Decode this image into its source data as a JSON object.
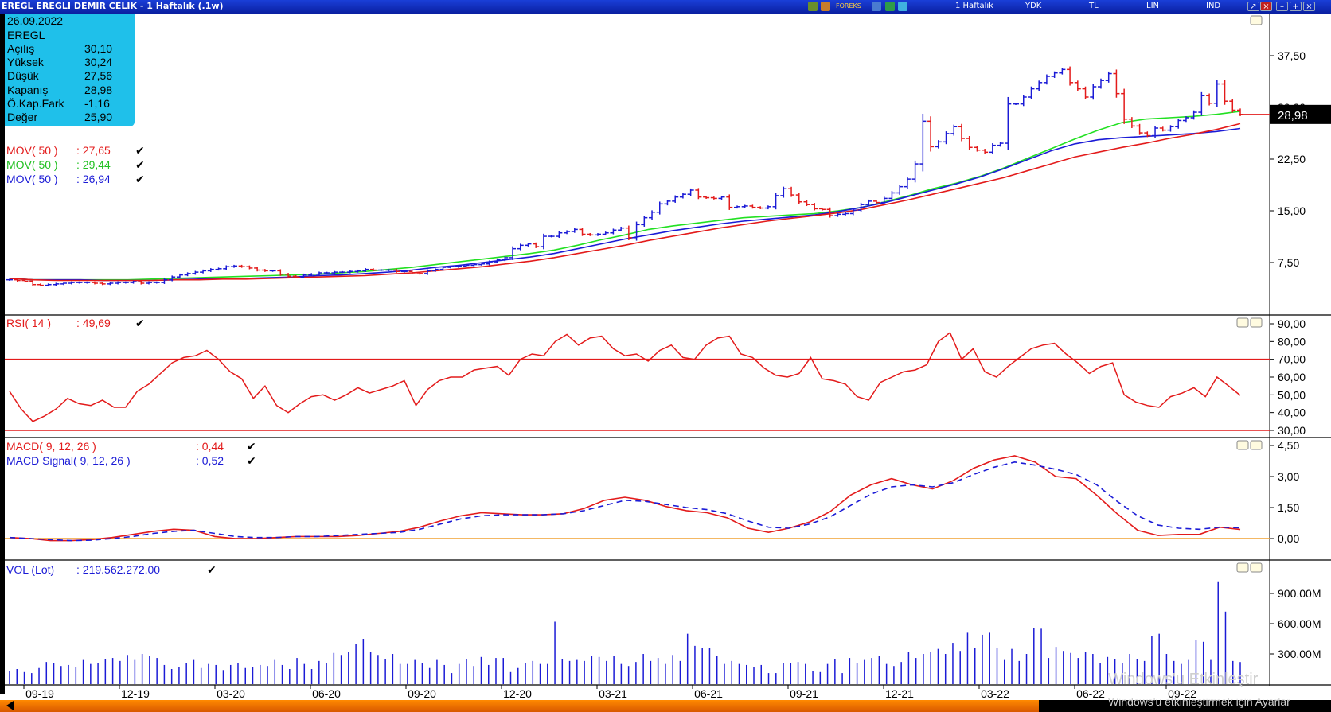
{
  "window": {
    "title": "EREGL EREGLI DEMIR CELIK - 1 Haftalık (.1w)",
    "toolbar": {
      "feed": "FOREKS",
      "period": "1 Haftalık",
      "currency1": "YDK",
      "currency2": "TL",
      "scale": "LIN",
      "mode": "IND"
    }
  },
  "info": {
    "date": "26.09.2022",
    "symbol": "EREGL",
    "rows": [
      {
        "label": "Açılış",
        "value": "30,10"
      },
      {
        "label": "Yüksek",
        "value": "30,24"
      },
      {
        "label": "Düşük",
        "value": "27,56"
      },
      {
        "label": "Kapanış",
        "value": "28,98"
      },
      {
        "label": "Ö.Kap.Fark",
        "value": "-1,16"
      },
      {
        "label": "Değer",
        "value": "25,90"
      }
    ]
  },
  "colors": {
    "up": "#1b1bd6",
    "down": "#e31b1b",
    "green": "#22e022",
    "orange": "#f0a030",
    "panel_border": "#606060",
    "last_price_bg": "#000000"
  },
  "legends": {
    "price": [
      {
        "label": "MOV( 50 )",
        "value": ": 27,65",
        "color": "#e31b1b"
      },
      {
        "label": "MOV( 50 )",
        "value": ": 29,44",
        "color": "#22c022"
      },
      {
        "label": "MOV( 50 )",
        "value": ": 26,94",
        "color": "#1b1bd6"
      }
    ],
    "rsi": [
      {
        "label": "RSI( 14 )",
        "value": ": 49,69",
        "color": "#e31b1b"
      }
    ],
    "macd": [
      {
        "label": "MACD( 9, 12, 26 )",
        "value": ": 0,44",
        "color": "#e31b1b"
      },
      {
        "label": "MACD Signal( 9, 12, 26 )",
        "value": ": 0,52",
        "color": "#1b1bd6"
      }
    ],
    "vol": [
      {
        "label": "VOL (Lot)",
        "value": ": 219.562.272,00",
        "color": "#1b1bd6"
      }
    ]
  },
  "last_price_label": "28,98",
  "watermark": {
    "line1": "Windows'u Etkinleştir",
    "line2": "Windows'u etkinleştirmek için Ayarlar"
  },
  "chart_data": [
    {
      "panel": "price",
      "type": "ohlc",
      "y_ticks": [
        "37,50",
        "30,00",
        "22,50",
        "15,00",
        "7,50"
      ],
      "ylim": [
        0,
        40
      ],
      "x_ticks": [
        "09-19",
        "12-19",
        "03-20",
        "06-20",
        "09-20",
        "12-20",
        "03-21",
        "06-21",
        "09-21",
        "12-21",
        "03-22",
        "06-22",
        "09-22"
      ],
      "close": [
        5.0,
        4.9,
        4.8,
        4.3,
        4.2,
        4.3,
        4.4,
        4.5,
        4.6,
        4.6,
        4.6,
        4.5,
        4.4,
        4.5,
        4.6,
        4.6,
        4.7,
        4.5,
        4.6,
        4.6,
        5.0,
        5.4,
        5.7,
        5.9,
        6.1,
        6.3,
        6.5,
        6.6,
        6.9,
        7.0,
        6.9,
        6.7,
        6.4,
        6.3,
        6.3,
        5.8,
        5.5,
        5.4,
        5.7,
        5.8,
        6.0,
        6.0,
        6.1,
        6.1,
        6.2,
        6.3,
        6.5,
        6.4,
        6.4,
        6.4,
        6.2,
        6.2,
        6.0,
        5.9,
        6.3,
        6.5,
        6.8,
        6.9,
        7.0,
        7.1,
        7.2,
        7.3,
        7.6,
        7.9,
        8.2,
        9.5,
        10.0,
        10.2,
        9.8,
        11.3,
        11.3,
        11.8,
        12.0,
        12.3,
        11.6,
        11.5,
        11.6,
        11.8,
        12.2,
        12.5,
        11.1,
        13.0,
        14.0,
        14.8,
        16.0,
        16.4,
        17.0,
        17.4,
        18.0,
        17.0,
        16.9,
        16.8,
        17.0,
        15.5,
        15.6,
        15.7,
        15.5,
        15.4,
        15.6,
        17.2,
        18.2,
        17.3,
        16.3,
        15.9,
        15.3,
        15.2,
        14.3,
        14.5,
        14.6,
        15.1,
        15.9,
        16.4,
        16.2,
        16.8,
        17.6,
        18.5,
        19.6,
        21.8,
        28.0,
        24.3,
        25.0,
        26.2,
        27.2,
        25.5,
        24.2,
        23.8,
        23.5,
        24.5,
        24.8,
        30.5,
        30.5,
        31.5,
        32.7,
        33.6,
        34.5,
        35.0,
        35.5,
        33.6,
        32.7,
        31.5,
        33.0,
        33.9,
        34.9,
        32.0,
        28.3,
        27.3,
        26.3,
        25.9,
        27.0,
        26.7,
        27.2,
        28.1,
        28.5,
        29.3,
        31.7,
        30.6,
        33.4,
        30.9,
        29.6,
        28.98
      ],
      "series": [
        {
          "name": "MOV( 50 )",
          "color": "#22e022",
          "values": [
            5.2,
            5.0,
            5.0,
            5.0,
            5.0,
            5.0,
            5.1,
            5.2,
            5.3,
            5.4,
            5.5,
            5.6,
            5.7,
            5.8,
            6.0,
            6.2,
            6.5,
            6.8,
            7.2,
            7.6,
            8.0,
            8.4,
            8.8,
            9.3,
            10.0,
            10.8,
            11.5,
            12.3,
            12.8,
            13.2,
            13.6,
            14.0,
            14.2,
            14.4,
            14.6,
            15.0,
            15.5,
            16.3,
            17.2,
            18.2,
            19.0,
            20.0,
            21.2,
            22.6,
            24.0,
            25.4,
            26.7,
            27.8,
            28.3,
            28.5,
            28.7,
            29.0,
            29.44
          ]
        },
        {
          "name": "MOV( 50 )",
          "color": "#1b1bd6",
          "values": [
            5.2,
            5.0,
            5.0,
            5.0,
            4.9,
            4.9,
            4.9,
            5.0,
            5.1,
            5.2,
            5.2,
            5.3,
            5.4,
            5.6,
            5.7,
            5.9,
            6.1,
            6.4,
            6.8,
            7.1,
            7.5,
            7.9,
            8.3,
            8.8,
            9.5,
            10.2,
            10.9,
            11.5,
            12.1,
            12.6,
            13.1,
            13.5,
            13.8,
            14.1,
            14.4,
            14.9,
            15.5,
            16.2,
            17.1,
            18.0,
            18.9,
            19.9,
            21.1,
            22.4,
            23.7,
            24.7,
            25.3,
            25.6,
            25.8,
            26.0,
            26.2,
            26.5,
            26.94
          ]
        },
        {
          "name": "MOV( 50 )",
          "color": "#e31b1b",
          "values": [
            5.2,
            5.0,
            4.9,
            4.9,
            4.9,
            4.9,
            4.9,
            5.0,
            5.0,
            5.1,
            5.1,
            5.2,
            5.3,
            5.4,
            5.5,
            5.6,
            5.8,
            6.0,
            6.3,
            6.6,
            6.9,
            7.3,
            7.7,
            8.2,
            8.8,
            9.4,
            10.0,
            10.7,
            11.3,
            11.9,
            12.5,
            13.0,
            13.5,
            13.9,
            14.3,
            14.7,
            15.2,
            15.9,
            16.6,
            17.4,
            18.2,
            19.0,
            19.8,
            20.8,
            21.8,
            22.8,
            23.5,
            24.2,
            24.8,
            25.5,
            26.1,
            26.8,
            27.65
          ]
        }
      ]
    },
    {
      "panel": "rsi",
      "type": "line",
      "y_ticks": [
        "90,00",
        "80,00",
        "70,00",
        "60,00",
        "50,00",
        "40,00",
        "30,00"
      ],
      "ylim": [
        30,
        90
      ],
      "reference_lines": [
        70,
        30
      ],
      "series": [
        {
          "name": "RSI( 14 )",
          "color": "#e31b1b",
          "values": [
            52,
            42,
            35,
            38,
            42,
            48,
            45,
            44,
            47,
            43,
            43,
            52,
            56,
            62,
            68,
            71,
            72,
            75,
            70,
            63,
            59,
            48,
            55,
            44,
            40,
            45,
            49,
            50,
            47,
            50,
            54,
            51,
            53,
            55,
            58,
            44,
            53,
            58,
            60,
            60,
            64,
            65,
            66,
            61,
            70,
            73,
            72,
            80,
            84,
            78,
            82,
            83,
            76,
            72,
            73,
            69,
            75,
            78,
            71,
            70,
            78,
            82,
            83,
            73,
            71,
            65,
            61,
            60,
            62,
            71,
            59,
            58,
            56,
            49,
            47,
            57,
            60,
            63,
            64,
            67,
            80,
            85,
            70,
            76,
            63,
            60,
            66,
            71,
            76,
            78,
            79,
            73,
            68,
            62,
            66,
            68,
            50,
            46,
            44,
            43,
            49,
            51,
            54,
            49,
            60,
            55,
            49.69
          ]
        }
      ]
    },
    {
      "panel": "macd",
      "type": "line",
      "y_ticks": [
        "4,50",
        "3,00",
        "1,50",
        "0,00"
      ],
      "ylim": [
        -0.5,
        4.6
      ],
      "reference_lines": [
        0
      ],
      "series": [
        {
          "name": "MACD( 9, 12, 26 )",
          "color": "#e31b1b",
          "values": [
            0.05,
            0.0,
            -0.1,
            -0.1,
            -0.05,
            0.05,
            0.2,
            0.35,
            0.45,
            0.4,
            0.1,
            0.0,
            0.0,
            0.05,
            0.1,
            0.1,
            0.1,
            0.15,
            0.25,
            0.35,
            0.55,
            0.85,
            1.1,
            1.25,
            1.2,
            1.15,
            1.15,
            1.2,
            1.45,
            1.85,
            2.0,
            1.85,
            1.55,
            1.35,
            1.25,
            1.0,
            0.5,
            0.3,
            0.5,
            0.8,
            1.3,
            2.1,
            2.6,
            2.9,
            2.6,
            2.4,
            2.8,
            3.4,
            3.8,
            4.0,
            3.7,
            3.0,
            2.9,
            2.1,
            1.2,
            0.4,
            0.15,
            0.2,
            0.2,
            0.55,
            0.44
          ]
        },
        {
          "name": "MACD Signal( 9, 12, 26 )",
          "color": "#1b1bd6",
          "values": [
            0.05,
            0.0,
            -0.05,
            -0.1,
            -0.08,
            0.0,
            0.1,
            0.25,
            0.35,
            0.4,
            0.25,
            0.1,
            0.05,
            0.05,
            0.1,
            0.1,
            0.15,
            0.2,
            0.25,
            0.3,
            0.45,
            0.7,
            0.95,
            1.1,
            1.15,
            1.15,
            1.15,
            1.2,
            1.35,
            1.6,
            1.85,
            1.8,
            1.65,
            1.5,
            1.4,
            1.2,
            0.85,
            0.55,
            0.5,
            0.7,
            1.05,
            1.6,
            2.15,
            2.5,
            2.6,
            2.5,
            2.7,
            3.1,
            3.45,
            3.7,
            3.55,
            3.35,
            3.1,
            2.6,
            1.8,
            1.1,
            0.65,
            0.5,
            0.45,
            0.55,
            0.52
          ]
        }
      ]
    },
    {
      "panel": "volume",
      "type": "bar",
      "y_ticks": [
        "900.00M",
        "600.00M",
        "300.00M"
      ],
      "ylim": [
        0,
        1050
      ],
      "series": [
        {
          "name": "VOL (Lot)",
          "color": "#1b1bd6",
          "values": [
            130,
            150,
            120,
            110,
            160,
            220,
            210,
            180,
            190,
            170,
            240,
            200,
            210,
            250,
            260,
            230,
            290,
            240,
            300,
            280,
            260,
            190,
            150,
            170,
            210,
            240,
            160,
            200,
            190,
            140,
            190,
            210,
            160,
            170,
            190,
            180,
            240,
            190,
            150,
            260,
            200,
            150,
            230,
            210,
            310,
            290,
            320,
            400,
            450,
            320,
            290,
            250,
            300,
            200,
            200,
            240,
            210,
            160,
            240,
            190,
            110,
            200,
            250,
            180,
            270,
            190,
            260,
            260,
            120,
            160,
            210,
            230,
            200,
            200,
            620,
            250,
            230,
            240,
            230,
            280,
            270,
            230,
            280,
            200,
            180,
            220,
            300,
            230,
            260,
            200,
            290,
            230,
            500,
            380,
            360,
            360,
            280,
            200,
            230,
            200,
            190,
            170,
            190,
            110,
            110,
            210,
            210,
            220,
            200,
            130,
            120,
            200,
            250,
            110,
            260,
            210,
            240,
            260,
            280,
            200,
            180,
            220,
            320,
            260,
            300,
            320,
            350,
            300,
            410,
            330,
            510,
            360,
            490,
            510,
            360,
            240,
            350,
            230,
            300,
            560,
            550,
            260,
            370,
            330,
            310,
            260,
            320,
            300,
            210,
            270,
            250,
            210,
            300,
            250,
            230,
            480,
            500,
            300,
            230,
            200,
            240,
            440,
            420,
            240,
            1020,
            720,
            230,
            219.56
          ]
        }
      ]
    }
  ]
}
